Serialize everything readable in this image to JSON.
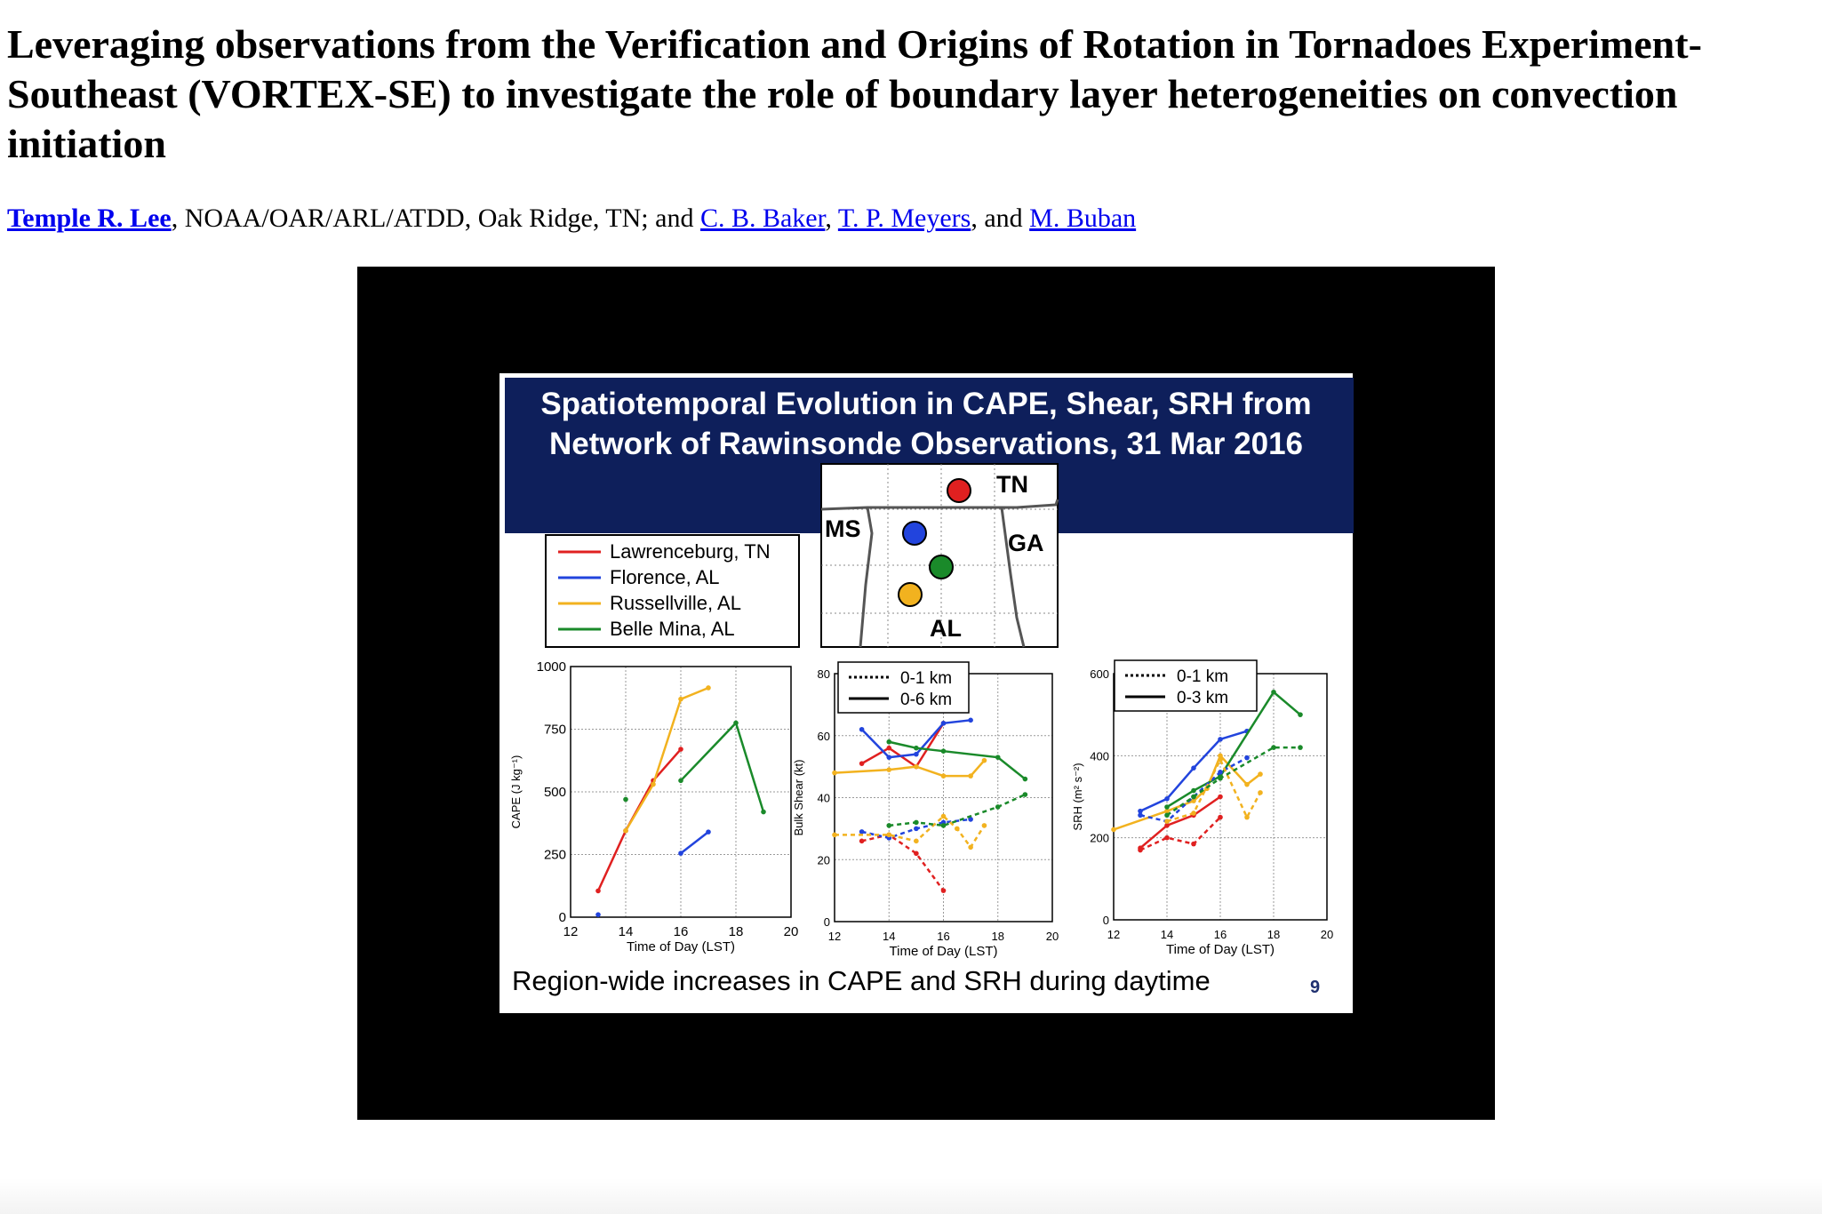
{
  "page": {
    "title": "Leveraging observations from the Verification and Origins of Rotation in Tornadoes Experiment-Southeast (VORTEX-SE) to investigate the role of boundary layer heterogeneities on convection initiation",
    "authors": {
      "lead": "Temple R. Lee",
      "affiliation": ", NOAA/OAR/ARL/ATDD, Oak Ridge, TN; and ",
      "coauthor1": "C. B. Baker",
      "sep1": ", ",
      "coauthor2": "T. P. Meyers",
      "sep2": ", and ",
      "coauthor3": "M. Buban"
    }
  },
  "slide": {
    "title_line1": "Spatiotemporal Evolution in CAPE, Shear, SRH from",
    "title_line2": "Network of Rawinsonde Observations, 31 Mar 2016",
    "bottom_text": "Region-wide increases in CAPE and SRH during daytime",
    "slide_number": "9",
    "legend": [
      {
        "label": "Lawrenceburg, TN",
        "color": "#e02020"
      },
      {
        "label": "Florence, AL",
        "color": "#2244dd"
      },
      {
        "label": "Russellville, AL",
        "color": "#f2b21f"
      },
      {
        "label": "Belle Mina, AL",
        "color": "#1a8a2a"
      }
    ],
    "map": {
      "states": [
        "TN",
        "MS",
        "GA",
        "AL"
      ],
      "dot_colors": [
        "#e02020",
        "#2244dd",
        "#1a8a2a",
        "#f2b21f"
      ]
    }
  },
  "chart_data": [
    {
      "type": "line",
      "xlabel": "Time of Day (LST)",
      "ylabel": "CAPE (J kg⁻¹)",
      "xlim": [
        12,
        20
      ],
      "ylim": [
        0,
        1000
      ],
      "xticks": [
        12,
        14,
        16,
        18,
        20
      ],
      "yticks": [
        0,
        250,
        500,
        750,
        1000
      ],
      "series": [
        {
          "name": "Lawrenceburg, TN",
          "color": "#e02020",
          "style": "solid",
          "points": [
            [
              13,
              105
            ],
            [
              14,
              345
            ],
            [
              15,
              545
            ],
            [
              16,
              670
            ]
          ]
        },
        {
          "name": "Florence, AL",
          "color": "#2244dd",
          "style": "solid",
          "points": [
            [
              16,
              255
            ],
            [
              17,
              340
            ]
          ]
        },
        {
          "name": "Florence, AL",
          "color": "#2244dd",
          "style": "point",
          "points": [
            [
              13,
              10
            ]
          ]
        },
        {
          "name": "Russellville, AL",
          "color": "#f2b21f",
          "style": "solid",
          "points": [
            [
              14,
              345
            ],
            [
              15,
              530
            ],
            [
              16,
              870
            ],
            [
              17,
              915
            ]
          ]
        },
        {
          "name": "Belle Mina, AL",
          "color": "#1a8a2a",
          "style": "solid",
          "points": [
            [
              16,
              545
            ],
            [
              18,
              775
            ],
            [
              19,
              420
            ]
          ]
        },
        {
          "name": "Belle Mina, AL",
          "color": "#1a8a2a",
          "style": "point",
          "points": [
            [
              14,
              470
            ]
          ]
        }
      ]
    },
    {
      "type": "line",
      "xlabel": "Time of Day (LST)",
      "ylabel": "Bulk Shear (kt)",
      "xlim": [
        12,
        20
      ],
      "ylim": [
        0,
        80
      ],
      "xticks": [
        12,
        14,
        16,
        18,
        20
      ],
      "yticks": [
        0,
        20,
        40,
        60,
        80
      ],
      "line_legend": [
        {
          "label": "0-1 km",
          "style": "dotted"
        },
        {
          "label": "0-6 km",
          "style": "solid"
        }
      ],
      "series": [
        {
          "name": "Lawrenceburg, TN",
          "color": "#e02020",
          "style": "solid",
          "points": [
            [
              13,
              51
            ],
            [
              14,
              56
            ],
            [
              15,
              50
            ],
            [
              16,
              64
            ]
          ]
        },
        {
          "name": "Florence, AL",
          "color": "#2244dd",
          "style": "solid",
          "points": [
            [
              13,
              62
            ],
            [
              14,
              53
            ],
            [
              15,
              54
            ],
            [
              16,
              64
            ],
            [
              17,
              65
            ]
          ]
        },
        {
          "name": "Russellville, AL",
          "color": "#f2b21f",
          "style": "solid",
          "points": [
            [
              12,
              48
            ],
            [
              14,
              49
            ],
            [
              15,
              50
            ],
            [
              16,
              47
            ],
            [
              17,
              47
            ],
            [
              17.5,
              52
            ]
          ]
        },
        {
          "name": "Belle Mina, AL",
          "color": "#1a8a2a",
          "style": "solid",
          "points": [
            [
              14,
              58
            ],
            [
              15,
              56
            ],
            [
              16,
              55
            ],
            [
              18,
              53
            ],
            [
              19,
              46
            ]
          ]
        },
        {
          "name": "Lawrenceburg, TN",
          "color": "#e02020",
          "style": "dashed",
          "points": [
            [
              13,
              26
            ],
            [
              14,
              28
            ],
            [
              15,
              22
            ],
            [
              16,
              10
            ]
          ]
        },
        {
          "name": "Florence, AL",
          "color": "#2244dd",
          "style": "dashed",
          "points": [
            [
              13,
              29
            ],
            [
              14,
              27
            ],
            [
              15,
              30
            ],
            [
              16,
              32
            ],
            [
              17,
              33
            ]
          ]
        },
        {
          "name": "Russellville, AL",
          "color": "#f2b21f",
          "style": "dashed",
          "points": [
            [
              12,
              28
            ],
            [
              14,
              28
            ],
            [
              15,
              26
            ],
            [
              16,
              34
            ],
            [
              16.5,
              30
            ],
            [
              17,
              24
            ],
            [
              17.5,
              31
            ]
          ]
        },
        {
          "name": "Belle Mina, AL",
          "color": "#1a8a2a",
          "style": "dashed",
          "points": [
            [
              14,
              31
            ],
            [
              15,
              32
            ],
            [
              16,
              31
            ],
            [
              18,
              37
            ],
            [
              19,
              41
            ]
          ]
        }
      ]
    },
    {
      "type": "line",
      "xlabel": "Time of Day (LST)",
      "ylabel": "SRH (m² s⁻²)",
      "xlim": [
        12,
        20
      ],
      "ylim": [
        0,
        600
      ],
      "xticks": [
        12,
        14,
        16,
        18,
        20
      ],
      "yticks": [
        0,
        200,
        400,
        600
      ],
      "line_legend": [
        {
          "label": "0-1 km",
          "style": "dotted"
        },
        {
          "label": "0-3 km",
          "style": "solid"
        }
      ],
      "series": [
        {
          "name": "Lawrenceburg, TN",
          "color": "#e02020",
          "style": "solid",
          "points": [
            [
              13,
              175
            ],
            [
              14,
              230
            ],
            [
              15,
              255
            ],
            [
              16,
              300
            ]
          ]
        },
        {
          "name": "Florence, AL",
          "color": "#2244dd",
          "style": "solid",
          "points": [
            [
              13,
              265
            ],
            [
              14,
              295
            ],
            [
              15,
              370
            ],
            [
              16,
              440
            ],
            [
              17,
              460
            ]
          ]
        },
        {
          "name": "Russellville, AL",
          "color": "#f2b21f",
          "style": "solid",
          "points": [
            [
              12,
              220
            ],
            [
              14,
              265
            ],
            [
              15,
              290
            ],
            [
              15.5,
              320
            ],
            [
              16,
              400
            ],
            [
              17,
              330
            ],
            [
              17.5,
              355
            ]
          ]
        },
        {
          "name": "Belle Mina, AL",
          "color": "#1a8a2a",
          "style": "solid",
          "points": [
            [
              14,
              275
            ],
            [
              15,
              315
            ],
            [
              16,
              350
            ],
            [
              18,
              555
            ],
            [
              19,
              500
            ]
          ]
        },
        {
          "name": "Lawrenceburg, TN",
          "color": "#e02020",
          "style": "dashed",
          "points": [
            [
              13,
              170
            ],
            [
              14,
              200
            ],
            [
              15,
              185
            ],
            [
              16,
              250
            ]
          ]
        },
        {
          "name": "Florence, AL",
          "color": "#2244dd",
          "style": "dashed",
          "points": [
            [
              13,
              255
            ],
            [
              14,
              240
            ],
            [
              15,
              300
            ],
            [
              16,
              360
            ],
            [
              17,
              395
            ]
          ]
        },
        {
          "name": "Russellville, AL",
          "color": "#f2b21f",
          "style": "dashed",
          "points": [
            [
              14,
              240
            ],
            [
              15,
              260
            ],
            [
              16,
              390
            ],
            [
              17,
              250
            ],
            [
              17.5,
              310
            ]
          ]
        },
        {
          "name": "Belle Mina, AL",
          "color": "#1a8a2a",
          "style": "dashed",
          "points": [
            [
              14,
              255
            ],
            [
              15,
              300
            ],
            [
              16,
              345
            ],
            [
              18,
              420
            ],
            [
              19,
              420
            ]
          ]
        }
      ]
    }
  ]
}
